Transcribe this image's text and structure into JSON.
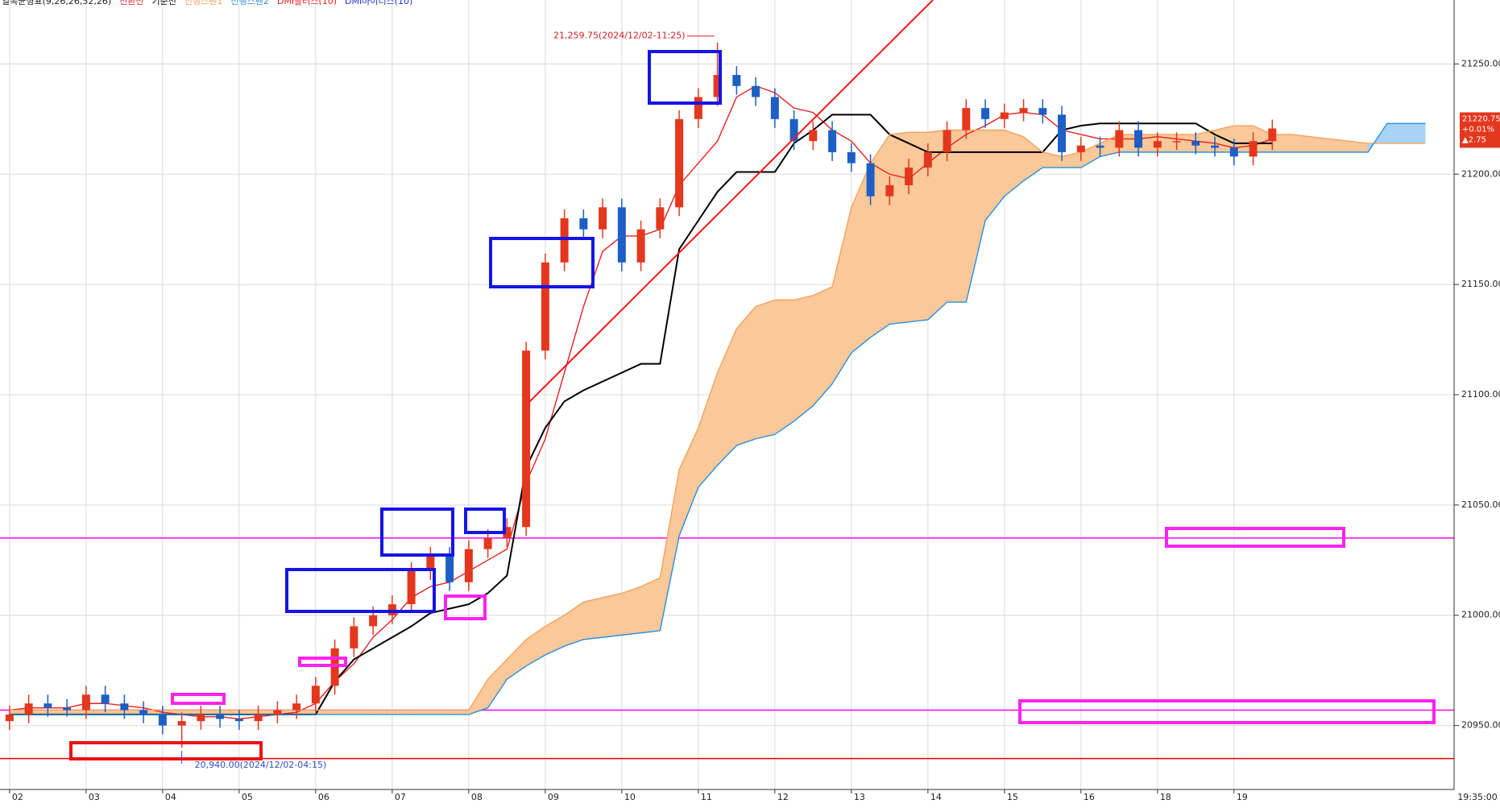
{
  "chart_data": {
    "type": "candlestick",
    "title": "일목균형표(9,26,26,52,26)",
    "open": [
      20952,
      20955,
      20960,
      20958,
      20957,
      20964,
      20960,
      20957,
      20955,
      20950,
      20952,
      20955,
      20953,
      20952,
      20955,
      20957,
      20960,
      20968,
      20985,
      20995,
      21000,
      21005,
      21020,
      21027,
      21015,
      21030,
      21035,
      21040,
      21120,
      21160,
      21180,
      21175,
      21185,
      21160,
      21175,
      21185,
      21225,
      21235,
      21245,
      21240,
      21235,
      21225,
      21215,
      21220,
      21210,
      21205,
      21190,
      21195,
      21203,
      21210,
      21220,
      21230,
      21225,
      21228,
      21230,
      21227,
      21210,
      21213,
      21212,
      21220,
      21212,
      21215,
      21215,
      21213,
      21212,
      21208,
      21215
    ],
    "high": [
      20959,
      20964,
      20964,
      20962,
      20968,
      20968,
      20964,
      20961,
      20959,
      20956,
      20959,
      20959,
      20957,
      20959,
      20961,
      20964,
      20972,
      20989,
      20999,
      21004,
      21009,
      21024,
      21031,
      21031,
      21034,
      21039,
      21044,
      21124,
      21164,
      21184,
      21184,
      21189,
      21189,
      21179,
      21189,
      21229,
      21239,
      21259.75,
      21249,
      21244,
      21239,
      21229,
      21224,
      21224,
      21214,
      21209,
      21199,
      21207,
      21214,
      21224,
      21234,
      21234,
      21232,
      21234,
      21234,
      21231,
      21217,
      21217,
      21224,
      21224,
      21219,
      21219,
      21219,
      21217,
      21216,
      21219,
      21224.75
    ],
    "low": [
      20948,
      20951,
      20954,
      20954,
      20953,
      20956,
      20953,
      20951,
      20946,
      20940,
      20948,
      20949,
      20948,
      20948,
      20951,
      20953,
      20956,
      20964,
      20981,
      20991,
      20996,
      21001,
      21016,
      21011,
      21011,
      21026,
      21031,
      21036,
      21116,
      21156,
      21171,
      21171,
      21156,
      21156,
      21171,
      21181,
      21221,
      21231,
      21236,
      21231,
      21221,
      21211,
      21211,
      21206,
      21201,
      21186,
      21186,
      21191,
      21199,
      21206,
      21216,
      21221,
      21221,
      21224,
      21223,
      21206,
      21206,
      21208,
      21208,
      21208,
      21208,
      21211,
      21209,
      21208,
      21204,
      21204,
      21211
    ],
    "close": [
      20955,
      20960,
      20958,
      20957,
      20964,
      20960,
      20957,
      20955,
      20950,
      20952,
      20955,
      20953,
      20952,
      20955,
      20957,
      20960,
      20968,
      20985,
      20995,
      21000,
      21005,
      21020,
      21027,
      21015,
      21030,
      21035,
      21040,
      21120,
      21160,
      21180,
      21175,
      21185,
      21160,
      21175,
      21185,
      21225,
      21235,
      21245,
      21240,
      21235,
      21225,
      21215,
      21220,
      21210,
      21205,
      21190,
      21195,
      21203,
      21210,
      21220,
      21230,
      21225,
      21228,
      21230,
      21227,
      21210,
      21213,
      21212,
      21220,
      21212,
      21215,
      21215,
      21213,
      21212,
      21208,
      21215,
      21220.75
    ],
    "up_color": "#e3371e",
    "down_color": "#1d5fc4",
    "series": [
      {
        "name": "전환선",
        "color": "#e8201e",
        "values": [
          20957,
          20958,
          20958,
          20958,
          20960,
          20960,
          20959,
          20958,
          20956,
          20955,
          20954,
          20954,
          20953,
          20954,
          20955,
          20956,
          20960,
          20970,
          20978,
          20990,
          20998,
          21008,
          21013,
          21015,
          21020,
          21025,
          21030,
          21060,
          21080,
          21110,
          21140,
          21165,
          21172,
          21172,
          21175,
          21195,
          21205,
          21215,
          21235,
          21240,
          21237,
          21230,
          21228,
          21220,
          21215,
          21205,
          21200,
          21198,
          21205,
          21212,
          21218,
          21222,
          21227,
          21228,
          21227,
          21220,
          21218,
          21216,
          21216,
          21216,
          21217,
          21216,
          21215,
          21214,
          21212,
          21213,
          21216
        ]
      },
      {
        "name": "기준선",
        "color": "#000000",
        "values": [
          20955,
          20955,
          20955,
          20955,
          20955,
          20955,
          20955,
          20955,
          20955,
          20955,
          20955,
          20955,
          20955,
          20955,
          20955,
          20955,
          20955,
          20970,
          20980,
          20985,
          20990,
          20995,
          21001,
          21003,
          21005,
          21010,
          21018,
          21067,
          21085,
          21097,
          21102,
          21106,
          21110,
          21114,
          21114,
          21166,
          21179,
          21192,
          21201,
          21201,
          21201,
          21214,
          21220,
          21227,
          21227,
          21227,
          21218,
          21214,
          21210,
          21210,
          21210,
          21210,
          21210,
          21210,
          21210,
          21220,
          21222,
          21223,
          21223,
          21223,
          21223,
          21223,
          21223,
          21218,
          21214,
          21214,
          21214
        ]
      },
      {
        "name": "선행스팬1",
        "color": "#f3a35c",
        "values": [
          20957,
          20957,
          20957,
          20957,
          20957,
          20957,
          20957,
          20957,
          20957,
          20957,
          20957,
          20957,
          20957,
          20957,
          20957,
          20957,
          20957,
          20957,
          20957,
          20957,
          20957,
          20957,
          20957,
          20957,
          20957,
          20971,
          20980,
          20989,
          20995,
          21000,
          21006,
          21008,
          21010,
          21013,
          21017,
          21066,
          21085,
          21110,
          21130,
          21140,
          21143,
          21143,
          21145,
          21149,
          21185,
          21205,
          21218,
          21219,
          21219,
          21220,
          21220,
          21220,
          21220,
          21217,
          21210,
          21208,
          21210,
          21214,
          21218,
          21218,
          21218,
          21218,
          21218,
          21220,
          21222,
          21222,
          21218,
          21218,
          21217,
          21216,
          21215,
          21214,
          21214,
          21214,
          21214
        ]
      },
      {
        "name": "선행스팬2",
        "color": "#2a8ee0",
        "values": [
          20955,
          20955,
          20955,
          20955,
          20955,
          20955,
          20955,
          20955,
          20955,
          20955,
          20955,
          20955,
          20955,
          20955,
          20955,
          20955,
          20955,
          20955,
          20955,
          20955,
          20955,
          20955,
          20955,
          20955,
          20955,
          20958,
          20971,
          20977,
          20982,
          20986,
          20989,
          20990,
          20991,
          20992,
          20993,
          21036,
          21058,
          21068,
          21077,
          21080,
          21082,
          21088,
          21095,
          21105,
          21119,
          21126,
          21132,
          21133,
          21134,
          21142,
          21142,
          21179,
          21190,
          21197,
          21203,
          21203,
          21203,
          21208,
          21210,
          21210,
          21210,
          21210,
          21210,
          21210,
          21210,
          21210,
          21210,
          21210,
          21210,
          21210,
          21210,
          21210,
          21223,
          21223,
          21223
        ]
      }
    ],
    "legend_extra": [
      {
        "name": "DMI플러스(10)",
        "color": "#e8201e"
      },
      {
        "name": "DMI마이너스(10)",
        "color": "#2233cc"
      }
    ],
    "cloud_colors": [
      "#fac899",
      "#a9d3f5"
    ],
    "xlim": [
      -0.5,
      75.25
    ],
    "xticks": [
      {
        "value": 0,
        "label": "02"
      },
      {
        "value": 4,
        "label": "03"
      },
      {
        "value": 8,
        "label": "04"
      },
      {
        "value": 12,
        "label": "05"
      },
      {
        "value": 16,
        "label": "06"
      },
      {
        "value": 20,
        "label": "07"
      },
      {
        "value": 24,
        "label": "08"
      },
      {
        "value": 28,
        "label": "09"
      },
      {
        "value": 32,
        "label": "10"
      },
      {
        "value": 36,
        "label": "11"
      },
      {
        "value": 40,
        "label": "12"
      },
      {
        "value": 44,
        "label": "13"
      },
      {
        "value": 48,
        "label": "14"
      },
      {
        "value": 52,
        "label": "15"
      },
      {
        "value": 56,
        "label": "16"
      },
      {
        "value": 60,
        "label": "18"
      },
      {
        "value": 64,
        "label": "19"
      }
    ],
    "ylim": [
      20921,
      21279
    ],
    "yticks": [
      {
        "value": 20950,
        "label": "20950.00"
      },
      {
        "value": 21000,
        "label": "21000.00"
      },
      {
        "value": 21050,
        "label": "21050.00"
      },
      {
        "value": 21100,
        "label": "21100.00"
      },
      {
        "value": 21150,
        "label": "21150.00"
      },
      {
        "value": 21200,
        "label": "21200.00"
      },
      {
        "value": 21250,
        "label": "21250.00"
      }
    ],
    "grid": true,
    "hlines": [
      {
        "value": 21035,
        "color": "#ff00ff"
      },
      {
        "value": 20957,
        "color": "#ff00ff"
      },
      {
        "value": 20935,
        "color": "#e00000"
      }
    ],
    "annotations": [
      {
        "text": "21,259.75(2024/12/02-11:25)",
        "color": "#d02020"
      },
      {
        "text": "20,940.00(2024/12/02-04:15)",
        "color": "#3050c0"
      }
    ],
    "last_price": {
      "label": "21220.75",
      "change": "+0.01%",
      "delta": "▲2.75",
      "color": "#e3371e"
    },
    "time_label": "19:35:00"
  }
}
